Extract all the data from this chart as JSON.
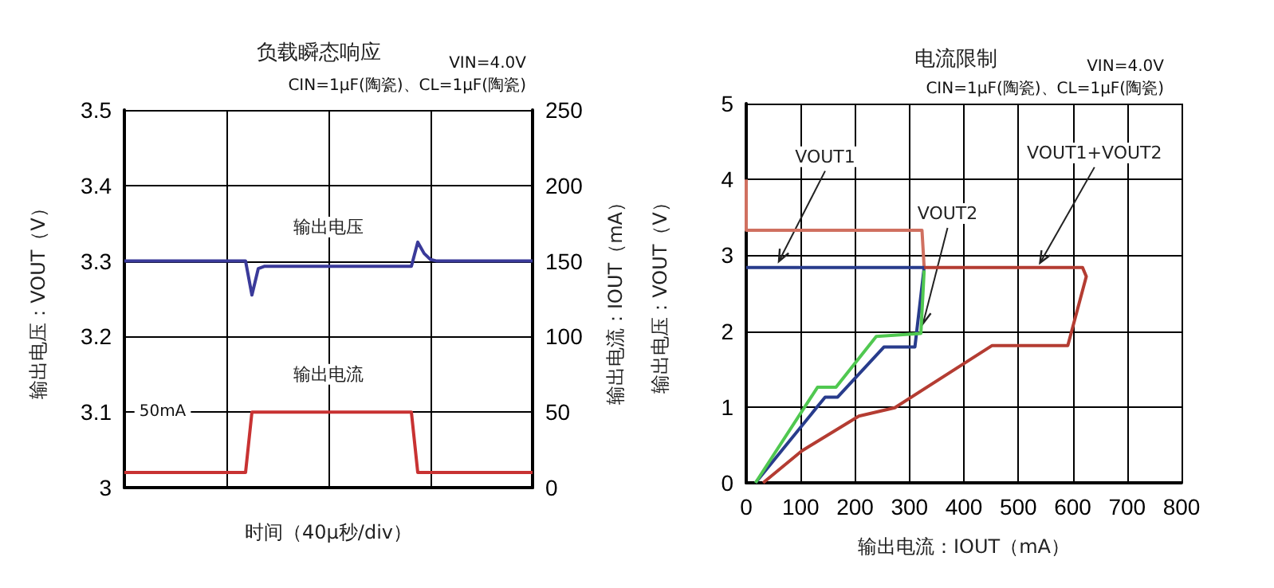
{
  "chart_data": [
    {
      "type": "line",
      "title": "负载瞬态响应",
      "xlabel": "时间（40μ秒/div）",
      "ylabel": "输出电压：VOUT（V）",
      "y2label": "输出电流：IOUT（mA）",
      "annotations": [
        "VIN=4.0V",
        "CIN=1μF(陶瓷)、CL=1μF(陶瓷)",
        "50mA"
      ],
      "categories": [
        null,
        null,
        null,
        null,
        null,
        null,
        null,
        null,
        null,
        null,
        null,
        null,
        null,
        null,
        null,
        null,
        null,
        null,
        null,
        null,
        null,
        null,
        null,
        null,
        null,
        null,
        null,
        null,
        null,
        null,
        null,
        null,
        null,
        null,
        null,
        null,
        null,
        null,
        null,
        null,
        null,
        null,
        null,
        null,
        null,
        null,
        null,
        null,
        null,
        null,
        null,
        null,
        null,
        null,
        null,
        null,
        null,
        null,
        null,
        null,
        null,
        null,
        null,
        null,
        null
      ],
      "ylim": [
        3,
        3.5
      ],
      "yticks": [
        3,
        3.1,
        3.2,
        3.3,
        3.4,
        3.5
      ],
      "y2lim": [
        0,
        250
      ],
      "y2ticks": [
        0,
        50,
        100,
        150,
        200,
        250
      ],
      "grid": true,
      "series": [
        {
          "name": "输出电压",
          "color": "#3a3a9a",
          "values": [
            3.3,
            3.3,
            3.3,
            3.3,
            3.3,
            3.3,
            3.3,
            3.3,
            3.3,
            3.3,
            3.3,
            3.3,
            3.3,
            3.3,
            3.3,
            3.3,
            3.3,
            3.3,
            3.3,
            3.3,
            3.255,
            3.29,
            3.293,
            3.293,
            3.293,
            3.293,
            3.293,
            3.293,
            3.293,
            3.293,
            3.293,
            3.293,
            3.293,
            3.293,
            3.293,
            3.293,
            3.293,
            3.293,
            3.293,
            3.293,
            3.293,
            3.293,
            3.293,
            3.293,
            3.293,
            3.293,
            3.325,
            3.31,
            3.302,
            3.3,
            3.3,
            3.3,
            3.3,
            3.3,
            3.3,
            3.3,
            3.3,
            3.3,
            3.3,
            3.3,
            3.3,
            3.3,
            3.3,
            3.3,
            3.3
          ]
        },
        {
          "name": "输出电流",
          "color": "#c83232",
          "axis": "y2",
          "values": [
            10,
            10,
            10,
            10,
            10,
            10,
            10,
            10,
            10,
            10,
            10,
            10,
            10,
            10,
            10,
            10,
            10,
            10,
            10,
            10,
            50,
            50,
            50,
            50,
            50,
            50,
            50,
            50,
            50,
            50,
            50,
            50,
            50,
            50,
            50,
            50,
            50,
            50,
            50,
            50,
            50,
            50,
            50,
            50,
            50,
            50,
            10,
            10,
            10,
            10,
            10,
            10,
            10,
            10,
            10,
            10,
            10,
            10,
            10,
            10,
            10,
            10,
            10,
            10,
            10
          ]
        }
      ]
    },
    {
      "type": "line",
      "title": "电流限制",
      "xlabel": "输出电流：IOUT（mA）",
      "ylabel": "输出电压：VOUT（V）",
      "annotations": [
        "VIN=4.0V",
        "CIN=1μF(陶瓷)、CL=1μF(陶瓷)"
      ],
      "xlim": [
        0,
        800
      ],
      "xticks": [
        0,
        100,
        200,
        300,
        400,
        500,
        600,
        700,
        800
      ],
      "ylim": [
        0,
        5
      ],
      "yticks": [
        0,
        1,
        2,
        3,
        4,
        5
      ],
      "grid": true,
      "series": [
        {
          "color": "#d07060",
          "x": [
            0,
            0,
            323,
            327
          ],
          "values": [
            4.0,
            3.33,
            3.33,
            2.84
          ]
        },
        {
          "name": "VOUT1",
          "color": "#283c8c",
          "x": [
            17,
            145,
            168,
            253,
            310,
            327,
            0
          ],
          "values": [
            0,
            1.13,
            1.13,
            1.79,
            1.79,
            2.84,
            2.84
          ]
        },
        {
          "name": "VOUT2",
          "color": "#50c850",
          "x": [
            17,
            131,
            165,
            239,
            321,
            327
          ],
          "values": [
            0,
            1.26,
            1.26,
            1.93,
            1.97,
            2.8
          ]
        },
        {
          "name": "VOUT1+VOUT2",
          "color": "#b43c32",
          "x": [
            31,
            102,
            207,
            273,
            452,
            591,
            625,
            618,
            327
          ],
          "values": [
            0,
            0.42,
            0.88,
            0.99,
            1.81,
            1.81,
            2.72,
            2.84,
            2.84
          ]
        }
      ]
    }
  ]
}
